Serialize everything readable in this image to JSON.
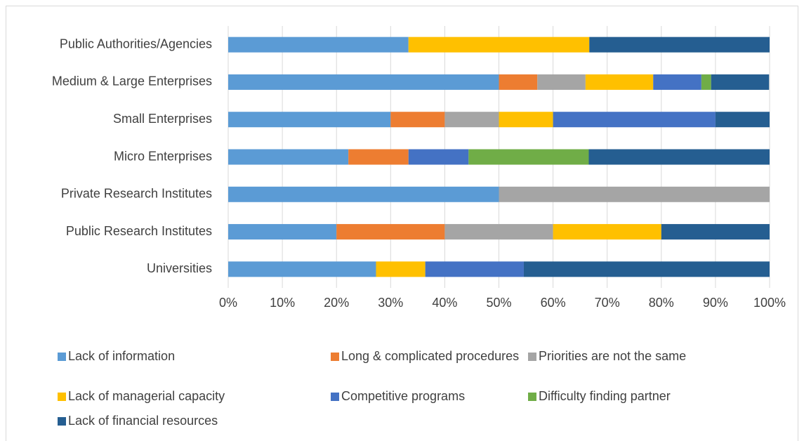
{
  "chart_data": {
    "type": "stacked-bar-horizontal",
    "categories": [
      "Public Authorities/Agencies",
      "Medium & Large Enterprises",
      "Small Enterprises",
      "Micro Enterprises",
      "Private Research Institutes",
      "Public Research Institutes",
      "Universities"
    ],
    "series": [
      {
        "name": "Lack of information",
        "color": "#5b9bd5",
        "values": [
          33.3,
          50,
          30,
          22.2,
          50,
          20,
          27.3
        ]
      },
      {
        "name": "Long & complicated procedures",
        "color": "#ed7d31",
        "values": [
          0,
          7.1,
          10,
          11.1,
          0,
          20,
          0
        ]
      },
      {
        "name": "Priorities are not the same",
        "color": "#a5a5a5",
        "values": [
          0,
          8.9,
          10,
          0,
          50,
          20,
          0
        ]
      },
      {
        "name": "Lack of managerial capacity",
        "color": "#ffc000",
        "values": [
          33.4,
          12.5,
          10,
          0,
          0,
          20,
          9.1
        ]
      },
      {
        "name": "Competitive programs",
        "color": "#4472c4",
        "values": [
          0,
          8.9,
          30,
          11.1,
          0,
          0,
          18.2
        ]
      },
      {
        "name": "Difficulty finding partner",
        "color": "#70ad47",
        "values": [
          0,
          1.8,
          0,
          22.2,
          0,
          0,
          0
        ]
      },
      {
        "name": "Lack of financial resources",
        "color": "#255e91",
        "values": [
          33.3,
          10.7,
          10,
          33.4,
          0,
          20,
          45.4
        ]
      }
    ],
    "xlim": [
      0,
      100
    ],
    "xticks": [
      {
        "value": 0,
        "label": "0%"
      },
      {
        "value": 10,
        "label": "10%"
      },
      {
        "value": 20,
        "label": "20%"
      },
      {
        "value": 30,
        "label": "30%"
      },
      {
        "value": 40,
        "label": "40%"
      },
      {
        "value": 50,
        "label": "50%"
      },
      {
        "value": 60,
        "label": "60%"
      },
      {
        "value": 70,
        "label": "70%"
      },
      {
        "value": 80,
        "label": "80%"
      },
      {
        "value": 90,
        "label": "90%"
      },
      {
        "value": 100,
        "label": "100%"
      }
    ],
    "grid": true,
    "legend": "bottom"
  }
}
